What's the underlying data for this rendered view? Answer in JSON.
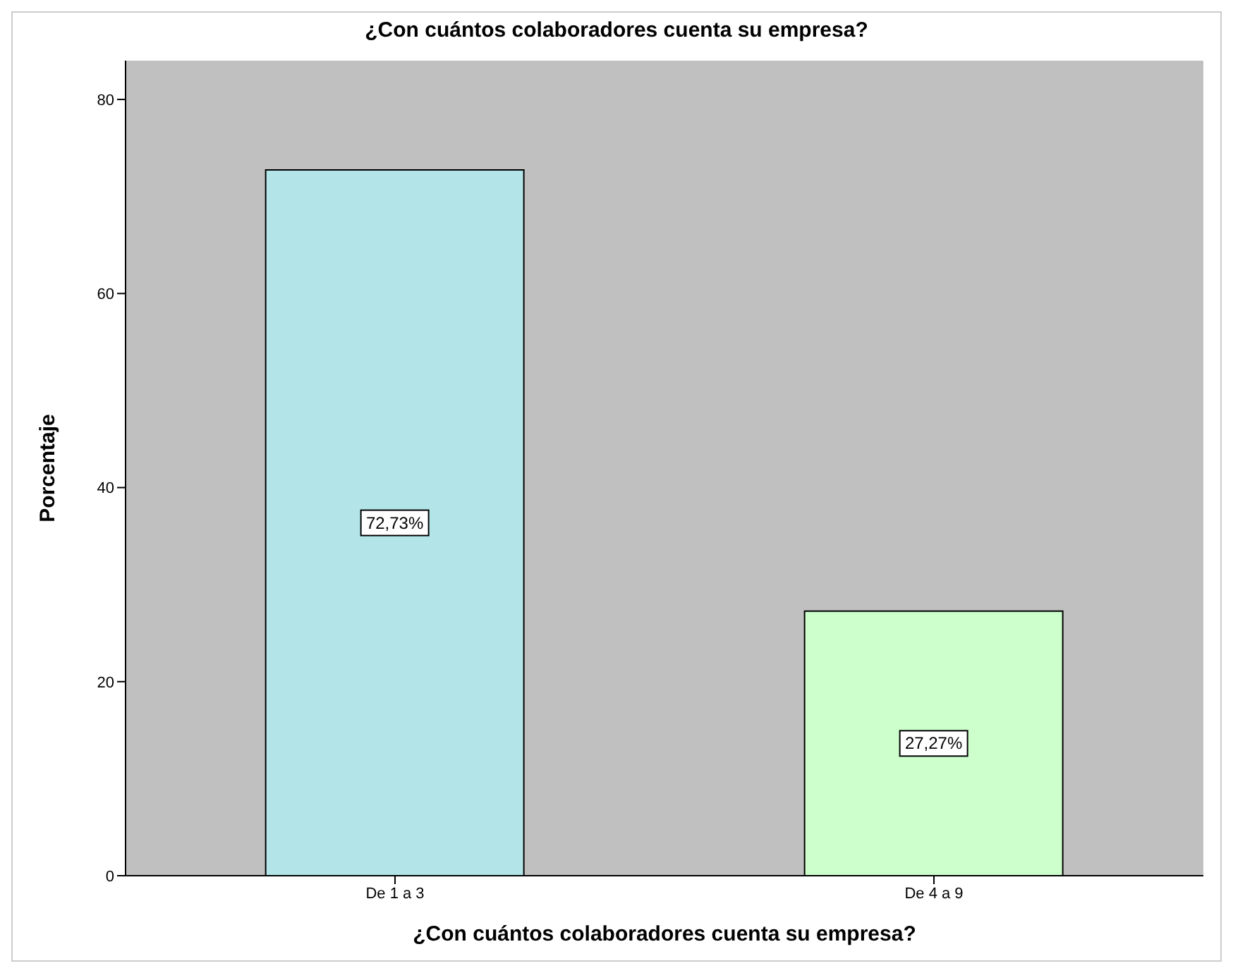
{
  "chart_data": {
    "type": "bar",
    "title": "¿Con cuántos colaboradores cuenta su empresa?",
    "xlabel": "¿Con cuántos colaboradores cuenta su empresa?",
    "ylabel": "Porcentaje",
    "categories": [
      "De 1 a 3",
      "De 4 a 9"
    ],
    "values": [
      72.73,
      27.27
    ],
    "colors": [
      "#b3e5e8",
      "#ccffcc"
    ],
    "value_labels": [
      "72,73%",
      "27,27%"
    ],
    "ylim": [
      0,
      84
    ],
    "yticks": [
      0,
      20,
      40,
      60,
      80
    ],
    "grid": false
  }
}
